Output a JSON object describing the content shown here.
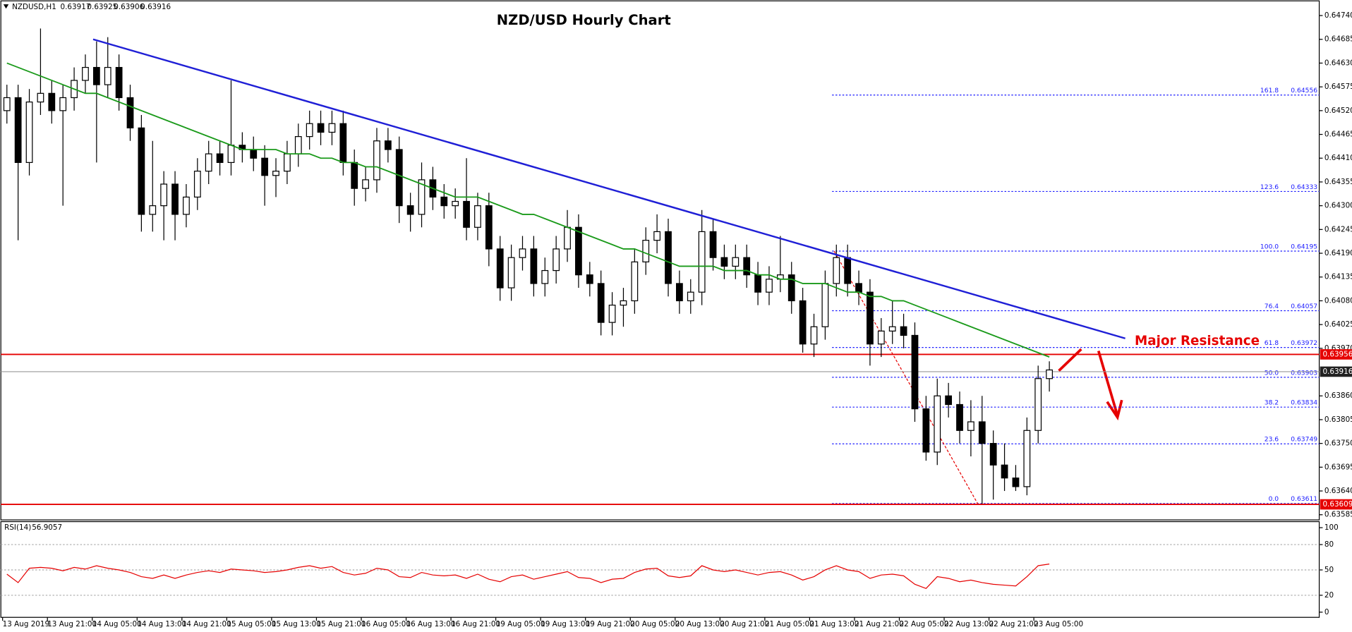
{
  "chart_data": {
    "type": "candlestick",
    "title": "NZD/USD Hourly Chart",
    "header": {
      "symbol": "NZDUSD,H1",
      "ohlc": [
        0.63917,
        0.63925,
        0.63906,
        0.63916
      ]
    },
    "annotation": "Major Resistance",
    "x_labels": [
      "13 Aug 2019",
      "13 Aug 21:00",
      "14 Aug 05:00",
      "14 Aug 13:00",
      "14 Aug 21:00",
      "15 Aug 05:00",
      "15 Aug 13:00",
      "15 Aug 21:00",
      "16 Aug 05:00",
      "16 Aug 13:00",
      "16 Aug 21:00",
      "19 Aug 05:00",
      "19 Aug 13:00",
      "19 Aug 21:00",
      "20 Aug 05:00",
      "20 Aug 13:00",
      "20 Aug 21:00",
      "21 Aug 05:00",
      "21 Aug 13:00",
      "21 Aug 21:00",
      "22 Aug 05:00",
      "22 Aug 13:00",
      "22 Aug 21:00",
      "23 Aug 05:00"
    ],
    "open": [
      0.6452,
      0.6455,
      0.644,
      0.6454,
      0.6456,
      0.6452,
      0.6455,
      0.6459,
      0.6462,
      0.6458,
      0.6462,
      0.6455,
      0.6448,
      0.6428,
      0.643,
      0.6435,
      0.6428,
      0.6432,
      0.6438,
      0.6442,
      0.644,
      0.6444,
      0.6443,
      0.6441,
      0.6437,
      0.6438,
      0.6442,
      0.6446,
      0.6449,
      0.6447,
      0.6449,
      0.644,
      0.6434,
      0.6436,
      0.6445,
      0.6443,
      0.643,
      0.6428,
      0.6436,
      0.6432,
      0.643,
      0.6431,
      0.6425,
      0.643,
      0.642,
      0.6411,
      0.6418,
      0.642,
      0.6412,
      0.6415,
      0.642,
      0.6425,
      0.6414,
      0.6412,
      0.6403,
      0.6407,
      0.6408,
      0.6417,
      0.6422,
      0.6424,
      0.6412,
      0.6408,
      0.641,
      0.6424,
      0.6418,
      0.6416,
      0.6418,
      0.6414,
      0.641,
      0.6413,
      0.6414,
      0.6408,
      0.6398,
      0.6402,
      0.6412,
      0.6418,
      0.6412,
      0.641,
      0.6398,
      0.6401,
      0.6402,
      0.64,
      0.6383,
      0.6373,
      0.6386,
      0.6384,
      0.6378,
      0.638,
      0.6375,
      0.637,
      0.6367,
      0.6365,
      0.6378,
      0.639
    ],
    "high": [
      0.6458,
      0.6458,
      0.6457,
      0.6471,
      0.6459,
      0.6458,
      0.6462,
      0.6465,
      0.6468,
      0.6469,
      0.6465,
      0.6458,
      0.6451,
      0.6445,
      0.6438,
      0.6438,
      0.6435,
      0.6441,
      0.6445,
      0.6445,
      0.6459,
      0.6447,
      0.6446,
      0.6444,
      0.6441,
      0.6445,
      0.6449,
      0.6452,
      0.6452,
      0.6452,
      0.6452,
      0.6443,
      0.6439,
      0.6448,
      0.6448,
      0.6446,
      0.6433,
      0.644,
      0.6439,
      0.6435,
      0.6434,
      0.6441,
      0.6433,
      0.6433,
      0.6423,
      0.6421,
      0.6423,
      0.6423,
      0.6418,
      0.6423,
      0.6429,
      0.6428,
      0.6417,
      0.6415,
      0.641,
      0.6411,
      0.642,
      0.6425,
      0.6428,
      0.6427,
      0.6415,
      0.6413,
      0.6429,
      0.6427,
      0.6421,
      0.6421,
      0.6421,
      0.6417,
      0.6416,
      0.6423,
      0.6417,
      0.6411,
      0.6405,
      0.6415,
      0.6421,
      0.6421,
      0.6415,
      0.6413,
      0.6404,
      0.6408,
      0.6405,
      0.6403,
      0.6386,
      0.639,
      0.6389,
      0.6387,
      0.6385,
      0.6386,
      0.6378,
      0.6375,
      0.637,
      0.6381,
      0.6393,
      0.6394
    ],
    "low": [
      0.6449,
      0.6422,
      0.6437,
      0.6451,
      0.6449,
      0.643,
      0.6452,
      0.6456,
      0.644,
      0.6455,
      0.6452,
      0.6445,
      0.6424,
      0.6424,
      0.6422,
      0.6422,
      0.6425,
      0.6429,
      0.6435,
      0.6437,
      0.6437,
      0.644,
      0.6438,
      0.643,
      0.6432,
      0.6435,
      0.6439,
      0.6443,
      0.6444,
      0.6444,
      0.6437,
      0.643,
      0.6431,
      0.6433,
      0.644,
      0.6426,
      0.6424,
      0.6425,
      0.6429,
      0.6427,
      0.6427,
      0.6422,
      0.6422,
      0.6416,
      0.6408,
      0.6408,
      0.6415,
      0.6409,
      0.6409,
      0.6412,
      0.6417,
      0.6411,
      0.6409,
      0.64,
      0.64,
      0.6402,
      0.6405,
      0.6414,
      0.6419,
      0.6409,
      0.6405,
      0.6405,
      0.6407,
      0.6415,
      0.6413,
      0.6413,
      0.6411,
      0.6407,
      0.6407,
      0.641,
      0.6405,
      0.6396,
      0.6395,
      0.6399,
      0.6409,
      0.6409,
      0.6407,
      0.6393,
      0.6395,
      0.6398,
      0.6397,
      0.638,
      0.6371,
      0.637,
      0.6381,
      0.6375,
      0.6372,
      0.6361,
      0.6362,
      0.6364,
      0.6364,
      0.6363,
      0.6375,
      0.6387
    ],
    "close": [
      0.6455,
      0.644,
      0.6454,
      0.6456,
      0.6452,
      0.6455,
      0.6459,
      0.6462,
      0.6458,
      0.6462,
      0.6455,
      0.6448,
      0.6428,
      0.643,
      0.6435,
      0.6428,
      0.6432,
      0.6438,
      0.6442,
      0.644,
      0.6444,
      0.6443,
      0.6441,
      0.6437,
      0.6438,
      0.6442,
      0.6446,
      0.6449,
      0.6447,
      0.6449,
      0.644,
      0.6434,
      0.6436,
      0.6445,
      0.6443,
      0.643,
      0.6428,
      0.6436,
      0.6432,
      0.643,
      0.6431,
      0.6425,
      0.643,
      0.642,
      0.6411,
      0.6418,
      0.642,
      0.6412,
      0.6415,
      0.642,
      0.6425,
      0.6414,
      0.6412,
      0.6403,
      0.6407,
      0.6408,
      0.6417,
      0.6422,
      0.6424,
      0.6412,
      0.6408,
      0.641,
      0.6424,
      0.6418,
      0.6416,
      0.6418,
      0.6414,
      0.641,
      0.6413,
      0.6414,
      0.6408,
      0.6398,
      0.6402,
      0.6412,
      0.6418,
      0.6412,
      0.641,
      0.6398,
      0.6401,
      0.6402,
      0.64,
      0.6383,
      0.6373,
      0.6386,
      0.6384,
      0.6378,
      0.638,
      0.6375,
      0.637,
      0.6367,
      0.6365,
      0.6378,
      0.639,
      0.6392
    ],
    "moving_average": {
      "color": "#1a9a1a",
      "values": [
        0.6463,
        0.6462,
        0.6461,
        0.646,
        0.6459,
        0.6458,
        0.6457,
        0.6456,
        0.6456,
        0.6455,
        0.6454,
        0.6453,
        0.6452,
        0.6451,
        0.645,
        0.6449,
        0.6448,
        0.6447,
        0.6446,
        0.6445,
        0.6444,
        0.6443,
        0.6443,
        0.6443,
        0.6443,
        0.6442,
        0.6442,
        0.6442,
        0.6441,
        0.6441,
        0.644,
        0.644,
        0.6439,
        0.6439,
        0.6438,
        0.6437,
        0.6436,
        0.6435,
        0.6434,
        0.6433,
        0.6432,
        0.6432,
        0.6432,
        0.6431,
        0.643,
        0.6429,
        0.6428,
        0.6428,
        0.6427,
        0.6426,
        0.6425,
        0.6424,
        0.6423,
        0.6422,
        0.6421,
        0.642,
        0.642,
        0.6419,
        0.6418,
        0.6417,
        0.6416,
        0.6416,
        0.6416,
        0.6416,
        0.6415,
        0.6415,
        0.6415,
        0.6414,
        0.6414,
        0.6413,
        0.6413,
        0.6412,
        0.6412,
        0.6412,
        0.6411,
        0.641,
        0.641,
        0.6409,
        0.6409,
        0.6408,
        0.6408,
        0.6407,
        0.6406,
        0.6405,
        0.6404,
        0.6403,
        0.6402,
        0.6401,
        0.64,
        0.6399,
        0.6398,
        0.6397,
        0.6396,
        0.6395
      ]
    },
    "trendline": {
      "color": "#1f1fd6",
      "values": [
        0.64685,
        0.63993
      ]
    },
    "ylim": [
      0.63579,
      0.64766
    ],
    "yticks": [
      {
        "value": 0.6474,
        "label": "0.64740"
      },
      0.64685,
      {
        "value": 0.6463,
        "label": "0.64630"
      },
      0.64575,
      {
        "value": 0.6452,
        "label": "0.64520"
      },
      0.64465,
      {
        "value": 0.6441,
        "label": "0.64410"
      },
      0.64355,
      {
        "value": 0.643,
        "label": "0.64300"
      },
      0.64245,
      {
        "value": 0.6419,
        "label": "0.64190"
      },
      0.64135,
      {
        "value": 0.6408,
        "label": "0.64080"
      },
      0.64025,
      {
        "value": 0.6397,
        "label": "0.63970"
      },
      {
        "value": 0.6386,
        "label": "0.63860"
      },
      0.63805,
      {
        "value": 0.6375,
        "label": "0.63750"
      },
      0.63695,
      {
        "value": 0.6364,
        "label": "0.63640"
      },
      0.63585
    ],
    "levels": [
      {
        "value": 0.63956,
        "color": "#e60000"
      },
      {
        "value": 0.63916,
        "color": "#999999"
      },
      {
        "value": 0.63609,
        "color": "#e60000"
      }
    ],
    "fibonacci": [
      {
        "ratio": "161.8",
        "value": 0.64556
      },
      {
        "ratio": "123.6",
        "value": 0.64333
      },
      {
        "ratio": "100.0",
        "value": 0.64195
      },
      {
        "ratio": "76.4",
        "value": 0.64057
      },
      {
        "ratio": "61.8",
        "value": 0.63972
      },
      {
        "ratio": "50.0",
        "value": 0.63903
      },
      {
        "ratio": "38.2",
        "value": 0.63834
      },
      {
        "ratio": "23.6",
        "value": 0.63749
      },
      {
        "ratio": "0.0",
        "value": 0.63611
      }
    ],
    "rsi": {
      "name": "RSI(14)",
      "last": 56.9057,
      "color": "#e60000",
      "ylim": [
        0,
        100
      ],
      "yticks": [
        100,
        80,
        50,
        20,
        0
      ],
      "levels": [
        80,
        50,
        20
      ],
      "values": [
        45,
        35,
        52,
        53,
        52,
        49,
        53,
        51,
        55,
        52,
        50,
        47,
        42,
        40,
        44,
        40,
        44,
        47,
        49,
        47,
        51,
        50,
        49,
        47,
        48,
        50,
        53,
        55,
        52,
        54,
        47,
        44,
        46,
        52,
        50,
        42,
        41,
        47,
        44,
        43,
        44,
        40,
        45,
        39,
        36,
        42,
        44,
        39,
        42,
        45,
        48,
        41,
        40,
        35,
        39,
        40,
        47,
        51,
        52,
        43,
        41,
        43,
        55,
        50,
        48,
        50,
        47,
        44,
        47,
        48,
        44,
        38,
        42,
        50,
        55,
        50,
        48,
        40,
        44,
        45,
        43,
        33,
        28,
        42,
        40,
        36,
        38,
        35,
        33,
        32,
        31,
        42,
        55,
        57
      ]
    }
  }
}
